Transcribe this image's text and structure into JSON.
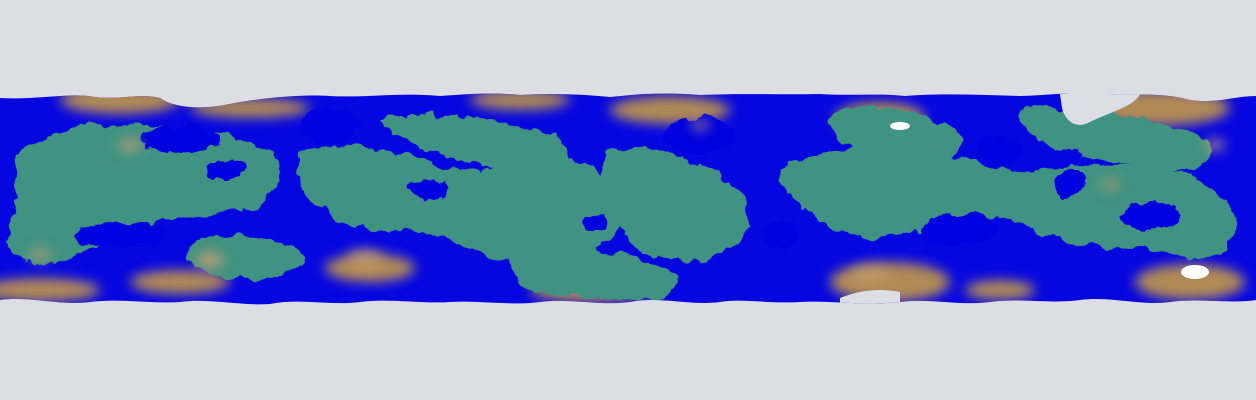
{
  "map": {
    "background_color": "#dddde6",
    "projection": "equirectangular",
    "palette": {
      "water": "#0606e0",
      "lowland": "#3f9282",
      "highland": "#b08a55",
      "peak": "#c8a070",
      "snow": "#ffffff"
    }
  }
}
